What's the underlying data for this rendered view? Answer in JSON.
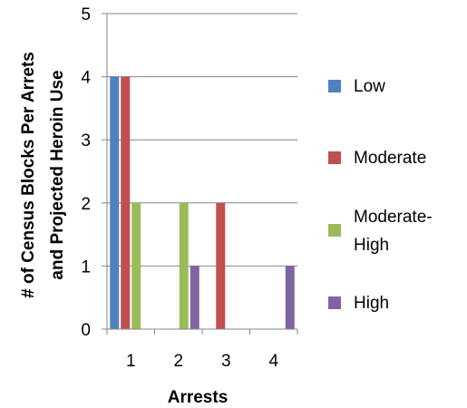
{
  "chart_data": {
    "type": "bar",
    "title": "",
    "xlabel": "Arrests",
    "ylabel_lines": [
      "# of Census Blocks Per Arrets",
      "and Projected Heroin Use"
    ],
    "categories": [
      "1",
      "2",
      "3",
      "4"
    ],
    "ylim": [
      0,
      5
    ],
    "yticks": [
      0,
      1,
      2,
      3,
      4,
      5
    ],
    "grid": true,
    "legend_position": "right",
    "series": [
      {
        "name": "Low",
        "color": "#4F81BD",
        "values": [
          4,
          0,
          0,
          0
        ]
      },
      {
        "name": "Moderate",
        "color": "#C0504D",
        "values": [
          4,
          0,
          2,
          0
        ]
      },
      {
        "name": "Moderate-High",
        "color": "#9BBB59",
        "values": [
          2,
          2,
          0,
          0
        ]
      },
      {
        "name": "High",
        "color": "#8064A2",
        "values": [
          0,
          1,
          0,
          1
        ]
      }
    ],
    "legend_lines": [
      [
        "Low"
      ],
      [
        "Moderate"
      ],
      [
        "Moderate-",
        "High"
      ],
      [
        "High"
      ]
    ]
  }
}
